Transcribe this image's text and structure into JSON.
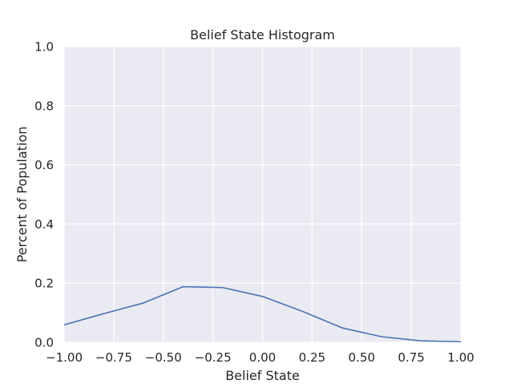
{
  "chart_data": {
    "type": "line",
    "title": "Belief State Histogram",
    "xlabel": "Belief State",
    "ylabel": "Percent of Population",
    "xlim": [
      -1.0,
      1.0
    ],
    "ylim": [
      0.0,
      1.0
    ],
    "x_ticks": [
      -1.0,
      -0.75,
      -0.5,
      -0.25,
      0.0,
      0.25,
      0.5,
      0.75,
      1.0
    ],
    "x_tick_labels": [
      "−1.00",
      "−0.75",
      "−0.50",
      "−0.25",
      "0.00",
      "0.25",
      "0.50",
      "0.75",
      "1.00"
    ],
    "y_ticks": [
      0.0,
      0.2,
      0.4,
      0.6,
      0.8,
      1.0
    ],
    "y_tick_labels": [
      "0.0",
      "0.2",
      "0.4",
      "0.6",
      "0.8",
      "1.0"
    ],
    "grid": true,
    "series": [
      {
        "color": "#4c72b0",
        "x": [
          -1.0,
          -0.8,
          -0.6,
          -0.4,
          -0.2,
          0.0,
          0.2,
          0.4,
          0.6,
          0.8,
          1.0
        ],
        "y": [
          0.059,
          0.097,
          0.133,
          0.188,
          0.185,
          0.155,
          0.105,
          0.049,
          0.019,
          0.005,
          0.002
        ]
      }
    ]
  },
  "colors": {
    "plot_background": "#eaeaf2",
    "grid": "#ffffff",
    "line": "#4c72b0"
  }
}
